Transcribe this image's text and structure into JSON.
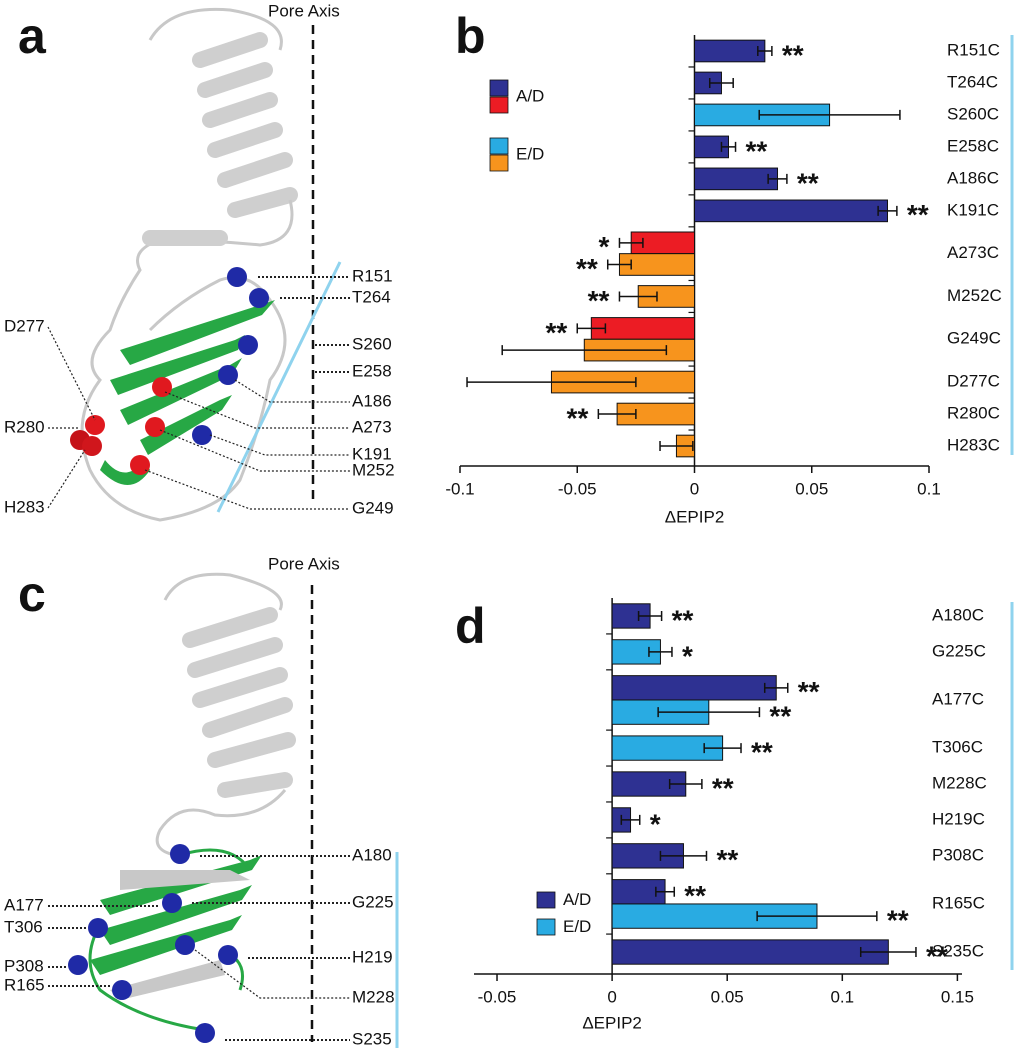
{
  "panels": [
    {
      "letter": "a",
      "axis_label": "Pore Axis",
      "residues": [
        "R151",
        "T264",
        "S260",
        "E258",
        "A186",
        "A273",
        "K191",
        "M252",
        "G249",
        "D277",
        "R280",
        "H283"
      ]
    },
    {
      "letter": "c",
      "axis_label": "Pore Axis",
      "residues": [
        "A180",
        "G225",
        "H219",
        "M228",
        "S235",
        "A177",
        "T306",
        "P308",
        "R165"
      ]
    }
  ],
  "chart_letters": [
    "b",
    "d"
  ],
  "chart_data": [
    {
      "type": "bar",
      "orientation": "horizontal",
      "categories": [
        "R151C",
        "T264C",
        "S260C",
        "E258C",
        "A186C",
        "K191C",
        "A273C",
        "M252C",
        "G249C",
        "D277C",
        "R280C",
        "H283C"
      ],
      "series": [
        {
          "name": "A/D",
          "color": [
            "#2e3192",
            "#ec1c24"
          ],
          "bar_colors": [
            "#2e3192",
            "#2e3192",
            null,
            "#2e3192",
            "#2e3192",
            "#2e3192",
            "#ec1c24",
            null,
            "#ec1c24",
            null,
            null,
            null
          ],
          "values": [
            0.03,
            0.0115,
            null,
            0.0145,
            0.0354,
            0.0823,
            -0.027,
            null,
            -0.044,
            null,
            null,
            null
          ],
          "errors": [
            0.003,
            0.005,
            null,
            0.003,
            0.004,
            0.004,
            0.005,
            null,
            0.006,
            null,
            null,
            null
          ],
          "significance": [
            "**",
            null,
            null,
            "**",
            "**",
            "**",
            "*",
            null,
            "**",
            null,
            null,
            null
          ]
        },
        {
          "name": "E/D",
          "color": [
            "#29abe2",
            "#f7941d"
          ],
          "bar_colors": [
            null,
            null,
            "#29abe2",
            null,
            null,
            null,
            "#f7941d",
            "#f7941d",
            "#f7941d",
            "#f7941d",
            "#f7941d",
            "#f7941d"
          ],
          "values": [
            null,
            null,
            0.0576,
            null,
            null,
            null,
            -0.032,
            -0.024,
            -0.047,
            -0.061,
            -0.033,
            -0.0077
          ],
          "errors": [
            null,
            null,
            0.03,
            null,
            null,
            null,
            0.005,
            0.008,
            0.035,
            0.036,
            0.008,
            0.007
          ],
          "significance": [
            null,
            null,
            null,
            null,
            null,
            null,
            "**",
            "**",
            null,
            null,
            "**",
            null
          ]
        }
      ],
      "xlim": [
        -0.1,
        0.1
      ],
      "xticks": [
        -0.1,
        -0.05,
        0,
        0.05,
        0.1
      ],
      "x_label": "ΔEPIP2",
      "legend": "upper left"
    },
    {
      "type": "bar",
      "orientation": "horizontal",
      "categories": [
        "A180C",
        "G225C",
        "A177C",
        "T306C",
        "M228C",
        "H219C",
        "P308C",
        "R165C",
        "S235C"
      ],
      "series": [
        {
          "name": "A/D",
          "color": [
            "#2e3192"
          ],
          "bar_colors": [
            "#2e3192",
            null,
            "#2e3192",
            null,
            "#2e3192",
            "#2e3192",
            "#2e3192",
            "#2e3192",
            "#2e3192"
          ],
          "values": [
            0.0165,
            null,
            0.0713,
            null,
            0.032,
            0.008,
            0.031,
            0.023,
            0.12
          ],
          "errors": [
            0.005,
            null,
            0.005,
            null,
            0.007,
            0.004,
            0.01,
            0.004,
            0.012
          ],
          "significance": [
            "**",
            null,
            "**",
            null,
            "**",
            "*",
            "**",
            "**",
            "**"
          ]
        },
        {
          "name": "E/D",
          "color": [
            "#29abe2"
          ],
          "bar_colors": [
            null,
            "#29abe2",
            "#29abe2",
            "#29abe2",
            null,
            null,
            null,
            "#29abe2",
            null
          ],
          "values": [
            null,
            0.021,
            0.042,
            0.048,
            null,
            null,
            null,
            0.089,
            null
          ],
          "errors": [
            null,
            0.005,
            0.022,
            0.008,
            null,
            null,
            null,
            0.026,
            null
          ],
          "significance": [
            null,
            "*",
            "**",
            "**",
            null,
            null,
            null,
            "**",
            null
          ]
        }
      ],
      "xlim": [
        -0.06,
        0.152
      ],
      "xticks": [
        -0.05,
        0,
        0.05,
        0.1,
        0.15
      ],
      "x_label": "ΔEPIP2",
      "legend": "lower left"
    }
  ]
}
